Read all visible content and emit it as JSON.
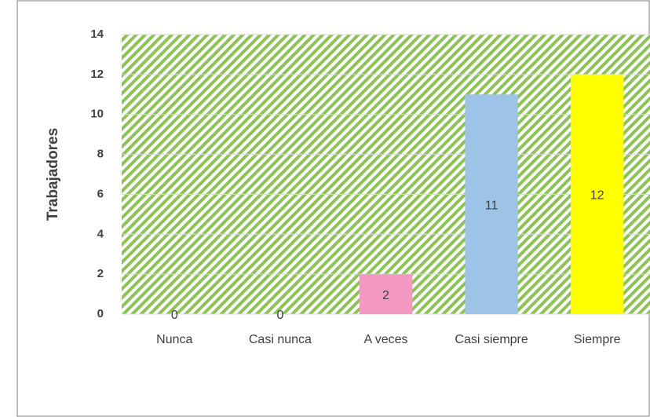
{
  "chart_data": {
    "type": "bar",
    "y_label": "Trabajadores",
    "categories": [
      "Nunca",
      "Casi nunca",
      "A veces",
      "Casi siempre",
      "Siempre"
    ],
    "values": [
      0,
      0,
      2,
      11,
      12
    ],
    "colors": [
      null,
      null,
      "#f49ac2",
      "#9dc3e6",
      "#ffff00"
    ],
    "ylim": [
      0,
      14
    ],
    "yticks": [
      0,
      2,
      4,
      6,
      8,
      10,
      12,
      14
    ],
    "grid": true,
    "data_labels": true
  }
}
